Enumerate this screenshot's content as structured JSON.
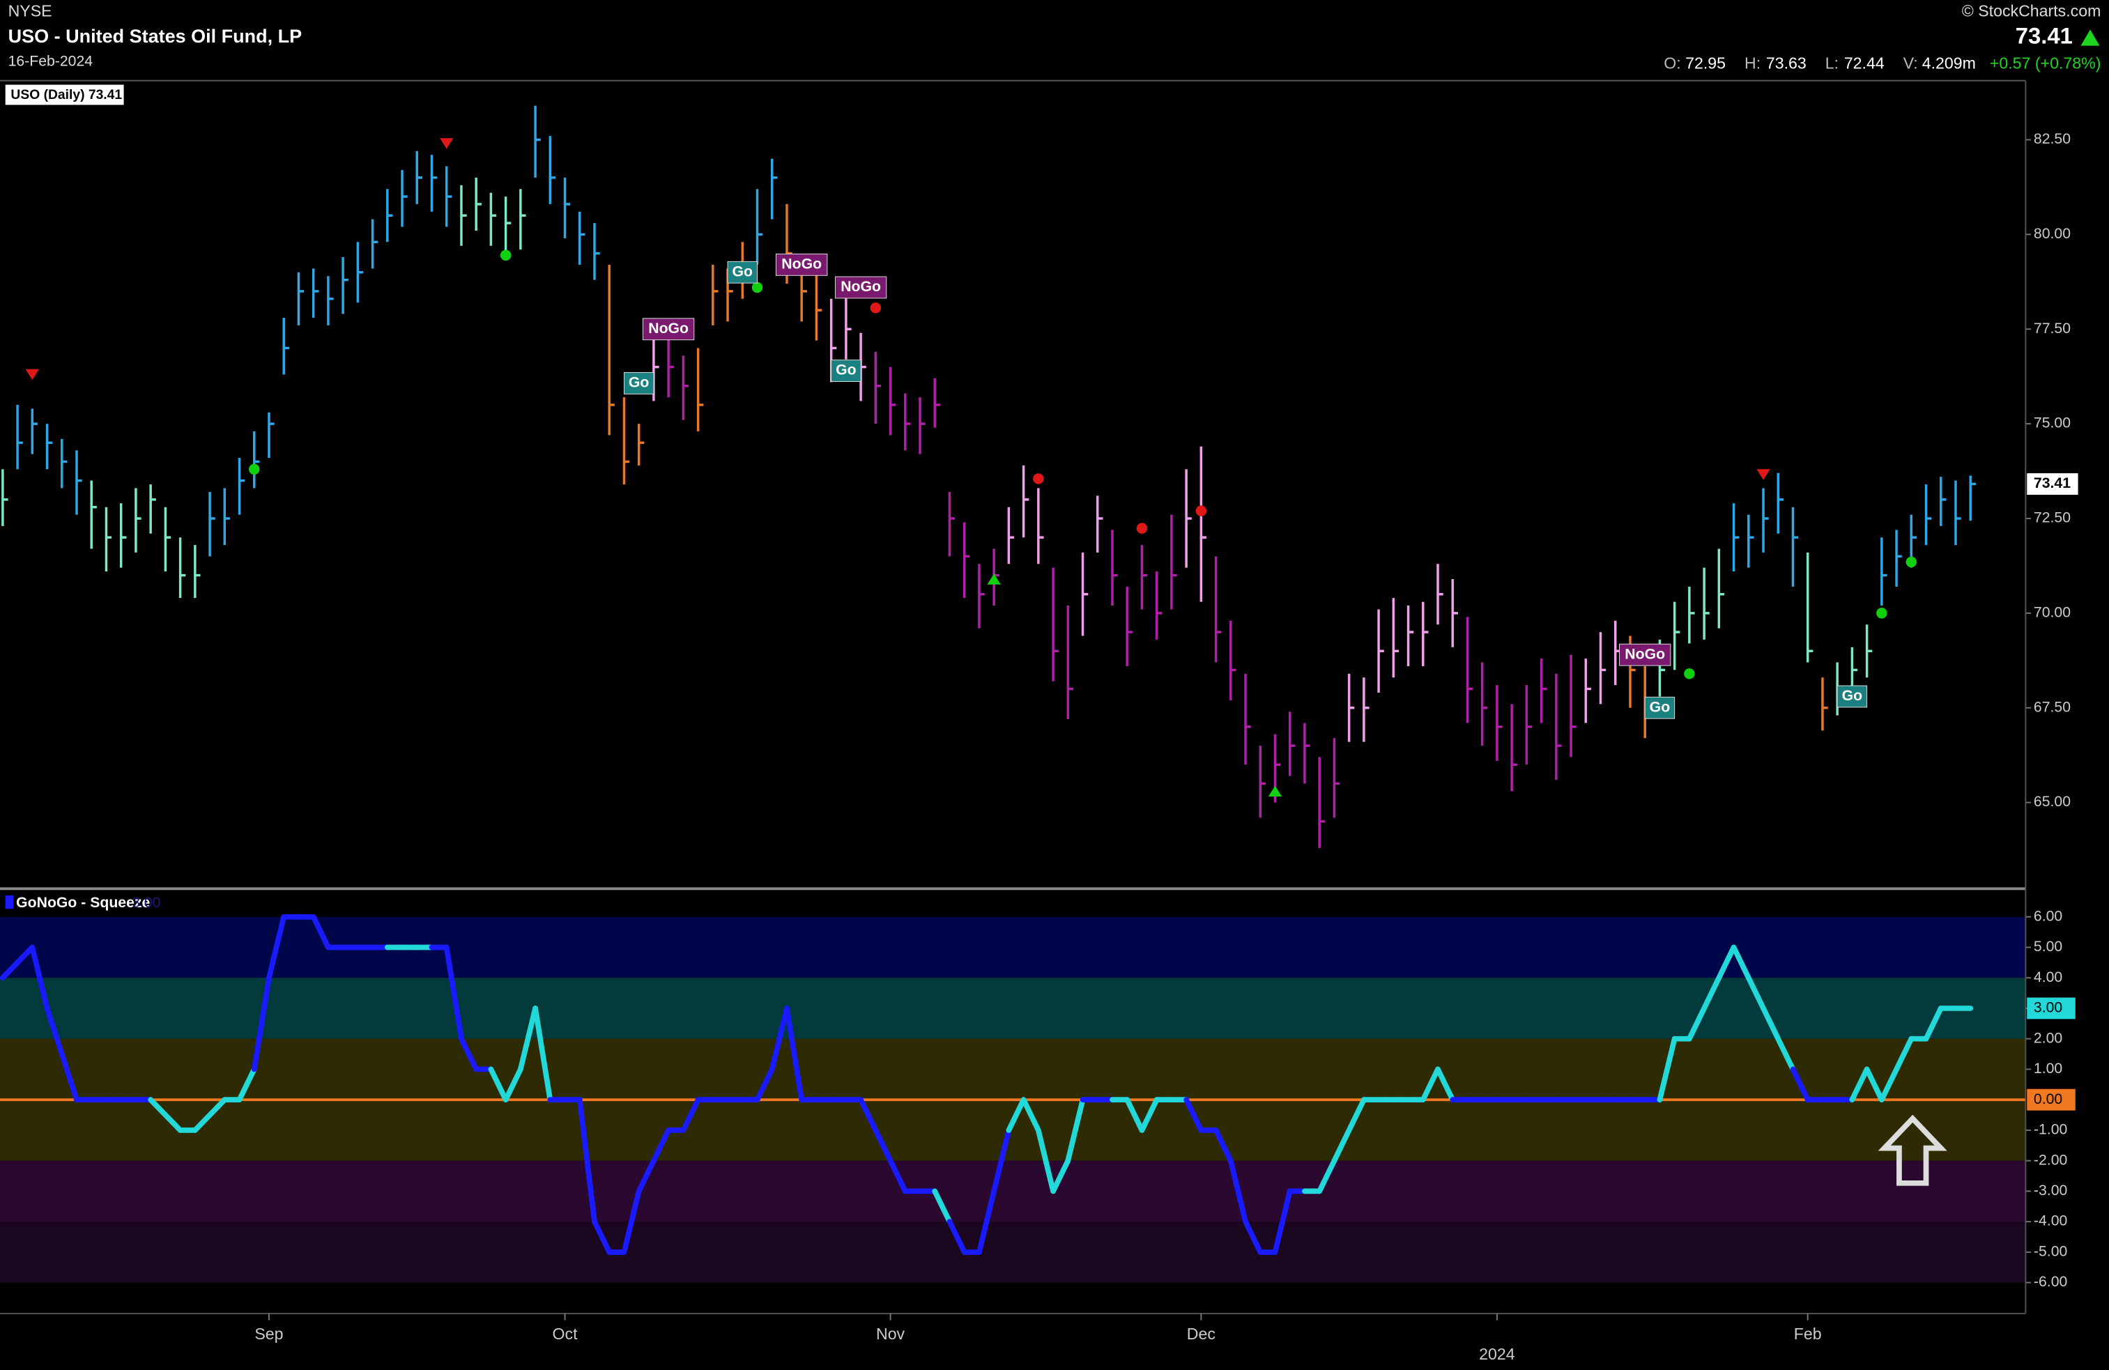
{
  "header": {
    "exchange": "NYSE",
    "title": "USO - United States Oil Fund, LP",
    "date": "16-Feb-2024",
    "source": "© StockCharts.com",
    "last": "73.41",
    "stats": [
      {
        "label": "O:",
        "value": "72.95"
      },
      {
        "label": "H:",
        "value": "73.63"
      },
      {
        "label": "L:",
        "value": "72.44"
      },
      {
        "label": "V:",
        "value": "4.209m"
      }
    ],
    "change": "+0.57 (+0.78%)"
  },
  "chart_data": [
    {
      "type": "ohlc",
      "series_name": "USO (Daily) 73.41",
      "categories": [
        null,
        null,
        null,
        null,
        null,
        null,
        null,
        null,
        null,
        null,
        null,
        null,
        null,
        null,
        null,
        null,
        null,
        null,
        "Sep",
        null,
        null,
        null,
        null,
        null,
        null,
        null,
        null,
        null,
        null,
        null,
        null,
        null,
        null,
        null,
        null,
        null,
        null,
        null,
        "Oct",
        null,
        null,
        null,
        null,
        null,
        null,
        null,
        null,
        null,
        null,
        null,
        null,
        null,
        null,
        null,
        null,
        null,
        null,
        null,
        null,
        null,
        "Nov",
        null,
        null,
        null,
        null,
        null,
        null,
        null,
        null,
        null,
        null,
        null,
        null,
        null,
        null,
        null,
        null,
        null,
        null,
        null,
        null,
        "Dec",
        null,
        null,
        null,
        null,
        null,
        null,
        null,
        null,
        null,
        null,
        null,
        null,
        null,
        null,
        null,
        null,
        null,
        null,
        null,
        "2024",
        null,
        null,
        null,
        null,
        null,
        null,
        null,
        null,
        null,
        null,
        null,
        null,
        null,
        null,
        null,
        null,
        null,
        null,
        null,
        null,
        "Feb",
        null,
        null,
        null,
        null,
        null,
        null,
        null,
        null,
        null,
        null,
        null
      ],
      "high": [
        73.8,
        75.5,
        75.4,
        75,
        74.6,
        74.3,
        73.5,
        72.8,
        72.9,
        73.3,
        73.4,
        72.8,
        72,
        71.8,
        73.2,
        73.3,
        74.1,
        74.8,
        75.3,
        77.8,
        79,
        79.1,
        78.9,
        79.4,
        79.8,
        80.4,
        81.2,
        81.7,
        82.2,
        82.1,
        81.8,
        81.3,
        81.5,
        81.1,
        81,
        81.2,
        83.4,
        82.6,
        81.5,
        80.6,
        80.3,
        79.2,
        75.7,
        75,
        77.3,
        77.3,
        76.8,
        77,
        79.2,
        79.1,
        79.8,
        81.2,
        82,
        80.8,
        79.3,
        79,
        78.3,
        78.6,
        77.4,
        76.9,
        76.5,
        75.8,
        75.7,
        76.2,
        73.2,
        72.4,
        71.3,
        71.7,
        72.8,
        73.9,
        73.3,
        71.2,
        70.2,
        71.6,
        73.1,
        72.2,
        70.7,
        71.8,
        71.1,
        72.6,
        73.8,
        74.4,
        71.5,
        69.8,
        68.4,
        66.5,
        66.8,
        67.4,
        67.1,
        66.2,
        66.7,
        68.4,
        68.3,
        70.1,
        70.4,
        70.2,
        70.3,
        71.3,
        70.9,
        69.9,
        68.7,
        68.1,
        67.6,
        68.1,
        68.8,
        68.4,
        68.9,
        68.8,
        69.5,
        69.8,
        69.4,
        68.6,
        69.3,
        70.3,
        70.7,
        71.2,
        71.7,
        72.9,
        72.6,
        73.3,
        73.7,
        72.8,
        71.6,
        68.3,
        68.7,
        69.1,
        69.7,
        72,
        72.2,
        72.6,
        73.4,
        73.6,
        73.5,
        73.63
      ],
      "low": [
        72.3,
        73.8,
        74.2,
        73.8,
        73.3,
        72.6,
        71.7,
        71.1,
        71.2,
        71.6,
        72.1,
        71.1,
        70.4,
        70.4,
        71.5,
        71.8,
        72.6,
        73.3,
        74.1,
        76.3,
        77.6,
        77.8,
        77.6,
        77.9,
        78.2,
        79.1,
        79.8,
        80.2,
        80.8,
        80.6,
        80.2,
        79.7,
        80.1,
        79.7,
        79.5,
        79.6,
        81.5,
        80.8,
        79.9,
        79.2,
        78.8,
        74.7,
        73.4,
        73.9,
        75.6,
        75.7,
        75.1,
        74.8,
        77.6,
        77.7,
        78.3,
        79.2,
        80.4,
        78.7,
        77.7,
        77.2,
        76.1,
        76.7,
        75.6,
        75,
        74.7,
        74.3,
        74.2,
        74.9,
        71.5,
        70.4,
        69.6,
        70.2,
        71.3,
        72,
        71.3,
        68.2,
        67.2,
        69.4,
        71.6,
        70.2,
        68.6,
        70.1,
        69.3,
        70.1,
        71.2,
        70.3,
        68.7,
        67.7,
        66,
        64.6,
        65,
        65.7,
        65.5,
        63.8,
        64.6,
        66.6,
        66.6,
        67.9,
        68.3,
        68.6,
        68.6,
        69.7,
        69.1,
        67.1,
        66.5,
        66.1,
        65.3,
        66,
        67.1,
        65.6,
        66.2,
        67.1,
        67.6,
        68.1,
        67.5,
        66.7,
        67.8,
        68.5,
        69.2,
        69.3,
        69.6,
        71.1,
        71.2,
        71.6,
        72.1,
        70.7,
        68.7,
        66.9,
        67.3,
        67.8,
        68.3,
        70.2,
        70.7,
        71.2,
        71.8,
        72.3,
        71.8,
        72.44
      ],
      "close": [
        73,
        74.5,
        75,
        74.5,
        74,
        73.5,
        72.8,
        72,
        72,
        72.5,
        73,
        72,
        71,
        71,
        72.5,
        72.5,
        73.5,
        74,
        75,
        77,
        78.5,
        78.5,
        78.3,
        78.8,
        79,
        79.8,
        80.5,
        81,
        81.5,
        81.5,
        81,
        80.5,
        80.8,
        80.5,
        80.3,
        80.5,
        82.5,
        81.5,
        80.8,
        80,
        79.5,
        75.5,
        74,
        74.5,
        76.5,
        76.5,
        76,
        75.5,
        78.5,
        78.5,
        79,
        80,
        81.5,
        79.5,
        78.5,
        78,
        77,
        77.5,
        76.5,
        76,
        75.5,
        75,
        75,
        75.5,
        72.5,
        71.5,
        70.5,
        71,
        72,
        73,
        72,
        69,
        68,
        70.5,
        72.5,
        71,
        69.5,
        71,
        70,
        71,
        72.5,
        72,
        69.5,
        68.5,
        67,
        65.5,
        66,
        66.5,
        66.5,
        64.5,
        65.5,
        67.5,
        67.5,
        69,
        69,
        69.5,
        69.5,
        70.5,
        70,
        68,
        67.5,
        67,
        66,
        67,
        68,
        66.5,
        67,
        68,
        68.5,
        69,
        68.5,
        67.5,
        68.5,
        69.5,
        70,
        70,
        70.5,
        72,
        72,
        72.5,
        73,
        72,
        69,
        67.5,
        68,
        68.5,
        69,
        71,
        71.5,
        72,
        72.5,
        73,
        72.5,
        73.41
      ],
      "bar_colors": [
        "#7fe6c8",
        "#2fa8e8",
        "#2fa8e8",
        "#2fa8e8",
        "#2fa8e8",
        "#2fa8e8",
        "#7fe6c8",
        "#7fe6c8",
        "#7fe6c8",
        "#7fe6c8",
        "#7fe6c8",
        "#7fe6c8",
        "#7fe6c8",
        "#7fe6c8",
        "#2fa8e8",
        "#2fa8e8",
        "#2fa8e8",
        "#2fa8e8",
        "#2fa8e8",
        "#2fa8e8",
        "#2fa8e8",
        "#2fa8e8",
        "#2fa8e8",
        "#2fa8e8",
        "#2fa8e8",
        "#2fa8e8",
        "#2fa8e8",
        "#2fa8e8",
        "#2fa8e8",
        "#2fa8e8",
        "#2fa8e8",
        "#7fe6c8",
        "#7fe6c8",
        "#7fe6c8",
        "#7fe6c8",
        "#7fe6c8",
        "#2fa8e8",
        "#2fa8e8",
        "#2fa8e8",
        "#2fa8e8",
        "#2fa8e8",
        "#e8782a",
        "#e8782a",
        "#e8782a",
        "#f0a0e8",
        "#b020a8",
        "#b020a8",
        "#e8782a",
        "#e8782a",
        "#e8782a",
        "#e8782a",
        "#2fa8e8",
        "#2fa8e8",
        "#e8782a",
        "#e8782a",
        "#e8782a",
        "#f0a0e8",
        "#f0a0e8",
        "#f0a0e8",
        "#b020a8",
        "#b020a8",
        "#b020a8",
        "#b020a8",
        "#b020a8",
        "#b020a8",
        "#b020a8",
        "#b020a8",
        "#b020a8",
        "#f0a0e8",
        "#f0a0e8",
        "#f0a0e8",
        "#b020a8",
        "#b020a8",
        "#f0a0e8",
        "#f0a0e8",
        "#b020a8",
        "#b020a8",
        "#b020a8",
        "#b020a8",
        "#b020a8",
        "#f0a0e8",
        "#f0a0e8",
        "#b020a8",
        "#b020a8",
        "#b020a8",
        "#b020a8",
        "#b020a8",
        "#b020a8",
        "#b020a8",
        "#b020a8",
        "#b020a8",
        "#f0a0e8",
        "#f0a0e8",
        "#f0a0e8",
        "#f0a0e8",
        "#f0a0e8",
        "#f0a0e8",
        "#f0a0e8",
        "#f0a0e8",
        "#b020a8",
        "#b020a8",
        "#b020a8",
        "#b020a8",
        "#b020a8",
        "#b020a8",
        "#b020a8",
        "#b020a8",
        "#f0a0e8",
        "#f0a0e8",
        "#f0a0e8",
        "#e8782a",
        "#e8782a",
        "#7fe6c8",
        "#7fe6c8",
        "#7fe6c8",
        "#7fe6c8",
        "#7fe6c8",
        "#2fa8e8",
        "#2fa8e8",
        "#2fa8e8",
        "#2fa8e8",
        "#2fa8e8",
        "#7fe6c8",
        "#e8782a",
        "#7fe6c8",
        "#7fe6c8",
        "#7fe6c8",
        "#2fa8e8",
        "#2fa8e8",
        "#2fa8e8",
        "#2fa8e8",
        "#2fa8e8",
        "#2fa8e8",
        "#2fa8e8"
      ],
      "ylim": [
        62.76,
        84.06
      ],
      "yticks": [
        {
          "value": 65,
          "label": "65.00"
        },
        {
          "value": 67.5,
          "label": "67.50"
        },
        {
          "value": 70,
          "label": "70.00"
        },
        {
          "value": 72.5,
          "label": "72.50"
        },
        {
          "value": 75,
          "label": "75.00"
        },
        {
          "value": 77.5,
          "label": "77.50"
        },
        {
          "value": 80,
          "label": "80.00"
        },
        {
          "value": 82.5,
          "label": "82.50"
        }
      ],
      "last_value": 73.41,
      "annotations": [
        {
          "text": "Go",
          "x": 43,
          "y": 76.07
        },
        {
          "text": "NoGo",
          "x": 45,
          "y": 77.5
        },
        {
          "text": "Go",
          "x": 50,
          "y": 79
        },
        {
          "text": "NoGo",
          "x": 54,
          "y": 79.2
        },
        {
          "text": "NoGo",
          "x": 58,
          "y": 78.6
        },
        {
          "text": "Go",
          "x": 57,
          "y": 76.4
        },
        {
          "text": "NoGo",
          "x": 111,
          "y": 68.9
        },
        {
          "text": "Go",
          "x": 112,
          "y": 67.5
        },
        {
          "text": "Go",
          "x": 125,
          "y": 67.8
        }
      ],
      "markers": [
        {
          "shape": "triangle-down",
          "color": "#e01818",
          "x": 2,
          "y": 76.3
        },
        {
          "shape": "triangle-down",
          "color": "#e01818",
          "x": 30,
          "y": 82.4
        },
        {
          "shape": "triangle-down",
          "color": "#e01818",
          "x": 119,
          "y": 73.66
        },
        {
          "shape": "triangle-up",
          "color": "#10d010",
          "x": 67,
          "y": 70.9
        },
        {
          "shape": "triangle-up",
          "color": "#10d010",
          "x": 86,
          "y": 65.3
        },
        {
          "shape": "dot",
          "color": "#10d010",
          "x": 17,
          "y": 73.8
        },
        {
          "shape": "dot",
          "color": "#10d010",
          "x": 34,
          "y": 79.45
        },
        {
          "shape": "dot",
          "color": "#10d010",
          "x": 51,
          "y": 78.6
        },
        {
          "shape": "dot",
          "color": "#10d010",
          "x": 114,
          "y": 68.4
        },
        {
          "shape": "dot",
          "color": "#10d010",
          "x": 127,
          "y": 70
        },
        {
          "shape": "dot",
          "color": "#10d010",
          "x": 129,
          "y": 71.35
        },
        {
          "shape": "dot",
          "color": "#e01818",
          "x": 59,
          "y": 78.06
        },
        {
          "shape": "dot",
          "color": "#e01818",
          "x": 70,
          "y": 73.55
        },
        {
          "shape": "dot",
          "color": "#e01818",
          "x": 77,
          "y": 72.24
        },
        {
          "shape": "dot",
          "color": "#e01818",
          "x": 81,
          "y": 72.7
        }
      ]
    },
    {
      "type": "line",
      "series_name": "GoNoGo - Squeeze",
      "legend_value": "3.00",
      "values": [
        4,
        4.5,
        5,
        3,
        1.5,
        0,
        0,
        0,
        0,
        0,
        0,
        -0.5,
        -1,
        -1,
        -0.5,
        0,
        0,
        1,
        4,
        6,
        6,
        6,
        5,
        5,
        5,
        5,
        5,
        5,
        5,
        5,
        5,
        2,
        1,
        1,
        0,
        1,
        3,
        0,
        0,
        0,
        -4,
        -5,
        -5,
        -3,
        -2,
        -1,
        -1,
        0,
        0,
        0,
        0,
        0,
        1,
        3,
        0,
        0,
        0,
        0,
        0,
        -1,
        -2,
        -3,
        -3,
        -3,
        -4,
        -5,
        -5,
        -3,
        -1,
        0,
        -1,
        -3,
        -2,
        0,
        0,
        0,
        0,
        -1,
        0,
        0,
        0,
        -1,
        -1,
        -2,
        -4,
        -5,
        -5,
        -3,
        -3,
        -3,
        -2,
        -1,
        0,
        0,
        0,
        0,
        0,
        1,
        0,
        0,
        0,
        0,
        0,
        0,
        0,
        0,
        0,
        0,
        0,
        0,
        0,
        0,
        0,
        2,
        2,
        3,
        4,
        5,
        4,
        3,
        2,
        1,
        0,
        0,
        0,
        0,
        1,
        0,
        1,
        2,
        2,
        3,
        3,
        3
      ],
      "colors": [
        "#1a1aff",
        "#1a1aff",
        "#1a1aff",
        "#1a1aff",
        "#1a1aff",
        "#1a1aff",
        "#1a1aff",
        "#1a1aff",
        "#1a1aff",
        "#1a1aff",
        "#1a1aff",
        "#22d8d8",
        "#22d8d8",
        "#22d8d8",
        "#22d8d8",
        "#22d8d8",
        "#22d8d8",
        "#22d8d8",
        "#1a1aff",
        "#1a1aff",
        "#1a1aff",
        "#1a1aff",
        "#1a1aff",
        "#1a1aff",
        "#1a1aff",
        "#1a1aff",
        "#1a1aff",
        "#22d8d8",
        "#22d8d8",
        "#22d8d8",
        "#1a1aff",
        "#1a1aff",
        "#1a1aff",
        "#1a1aff",
        "#22d8d8",
        "#22d8d8",
        "#22d8d8",
        "#22d8d8",
        "#1a1aff",
        "#1a1aff",
        "#1a1aff",
        "#1a1aff",
        "#1a1aff",
        "#1a1aff",
        "#1a1aff",
        "#1a1aff",
        "#1a1aff",
        "#1a1aff",
        "#1a1aff",
        "#1a1aff",
        "#1a1aff",
        "#1a1aff",
        "#1a1aff",
        "#1a1aff",
        "#1a1aff",
        "#1a1aff",
        "#1a1aff",
        "#1a1aff",
        "#1a1aff",
        "#1a1aff",
        "#1a1aff",
        "#1a1aff",
        "#1a1aff",
        "#1a1aff",
        "#22d8d8",
        "#1a1aff",
        "#1a1aff",
        "#1a1aff",
        "#1a1aff",
        "#22d8d8",
        "#22d8d8",
        "#22d8d8",
        "#22d8d8",
        "#22d8d8",
        "#1a1aff",
        "#1a1aff",
        "#22d8d8",
        "#22d8d8",
        "#22d8d8",
        "#22d8d8",
        "#22d8d8",
        "#1a1aff",
        "#1a1aff",
        "#1a1aff",
        "#1a1aff",
        "#1a1aff",
        "#1a1aff",
        "#1a1aff",
        "#1a1aff",
        "#22d8d8",
        "#22d8d8",
        "#22d8d8",
        "#22d8d8",
        "#22d8d8",
        "#22d8d8",
        "#22d8d8",
        "#22d8d8",
        "#22d8d8",
        "#22d8d8",
        "#1a1aff",
        "#1a1aff",
        "#1a1aff",
        "#1a1aff",
        "#1a1aff",
        "#1a1aff",
        "#1a1aff",
        "#1a1aff",
        "#1a1aff",
        "#1a1aff",
        "#1a1aff",
        "#1a1aff",
        "#1a1aff",
        "#1a1aff",
        "#22d8d8",
        "#22d8d8",
        "#22d8d8",
        "#22d8d8",
        "#22d8d8",
        "#22d8d8",
        "#22d8d8",
        "#22d8d8",
        "#22d8d8",
        "#1a1aff",
        "#1a1aff",
        "#1a1aff",
        "#1a1aff",
        "#22d8d8",
        "#22d8d8",
        "#22d8d8",
        "#22d8d8",
        "#22d8d8",
        "#22d8d8",
        "#22d8d8",
        "#22d8d8"
      ],
      "ylim": [
        -6.97,
        6.88
      ],
      "yticks": [
        {
          "value": 6,
          "label": "6.00"
        },
        {
          "value": 5,
          "label": "5.00"
        },
        {
          "value": 4,
          "label": "4.00"
        },
        {
          "value": 3,
          "label": "3.00"
        },
        {
          "value": 2,
          "label": "2.00"
        },
        {
          "value": 1,
          "label": "1.00"
        },
        {
          "value": -1,
          "label": "-1.00"
        },
        {
          "value": -2,
          "label": "-2.00"
        },
        {
          "value": -3,
          "label": "-3.00"
        },
        {
          "value": -4,
          "label": "-4.00"
        },
        {
          "value": -5,
          "label": "-5.00"
        },
        {
          "value": -6,
          "label": "-6.00"
        }
      ],
      "zero_line": {
        "value": 0,
        "label": "0.00",
        "color": "#f07820"
      },
      "last_value": 3,
      "last_value_label": "3.00",
      "bands": [
        {
          "from": 4,
          "to": 6,
          "color": "#00064a"
        },
        {
          "from": 2,
          "to": 4,
          "color": "#033a3c"
        },
        {
          "from": -2,
          "to": 2,
          "color": "#2e2b04"
        },
        {
          "from": -4,
          "to": -2,
          "color": "#2a0830"
        },
        {
          "from": -6,
          "to": -4,
          "color": "#1c0720"
        }
      ]
    }
  ]
}
